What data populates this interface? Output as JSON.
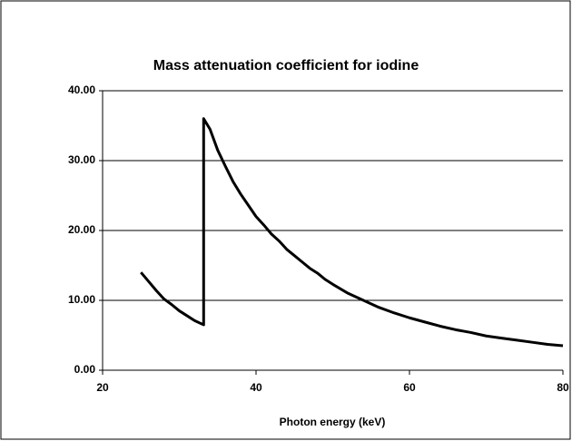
{
  "chart_data": {
    "type": "line",
    "title": "Mass attenuation coefficient for iodine",
    "xlabel": "Photon energy (keV)",
    "x": [
      25,
      26,
      27,
      28,
      29,
      30,
      31,
      32,
      33.17,
      33.17,
      34,
      35,
      36,
      37,
      38,
      39,
      40,
      41,
      42,
      43,
      44,
      45,
      46,
      47,
      48,
      49,
      50,
      52,
      54,
      56,
      58,
      60,
      62,
      64,
      66,
      68,
      70,
      72,
      74,
      76,
      78,
      80
    ],
    "values": [
      14.0,
      12.7,
      11.4,
      10.2,
      9.4,
      8.5,
      7.8,
      7.1,
      6.5,
      36.0,
      34.5,
      31.5,
      29.2,
      27.0,
      25.2,
      23.6,
      22.0,
      20.8,
      19.5,
      18.5,
      17.3,
      16.4,
      15.5,
      14.6,
      13.9,
      13.0,
      12.3,
      11.0,
      10.0,
      9.0,
      8.2,
      7.5,
      6.9,
      6.3,
      5.8,
      5.4,
      4.9,
      4.6,
      4.3,
      4.0,
      3.7,
      3.5
    ],
    "color": "#000000",
    "xlim": [
      20,
      80
    ],
    "xticks": [
      20,
      40,
      60,
      80
    ],
    "ylim": [
      0,
      40
    ],
    "yticks": [
      {
        "value": 0,
        "label": "0.00"
      },
      {
        "value": 10,
        "label": "10.00"
      },
      {
        "value": 20,
        "label": "20.00"
      },
      {
        "value": 30,
        "label": "30.00"
      },
      {
        "value": 40,
        "label": "40.00"
      }
    ],
    "grid": true
  }
}
